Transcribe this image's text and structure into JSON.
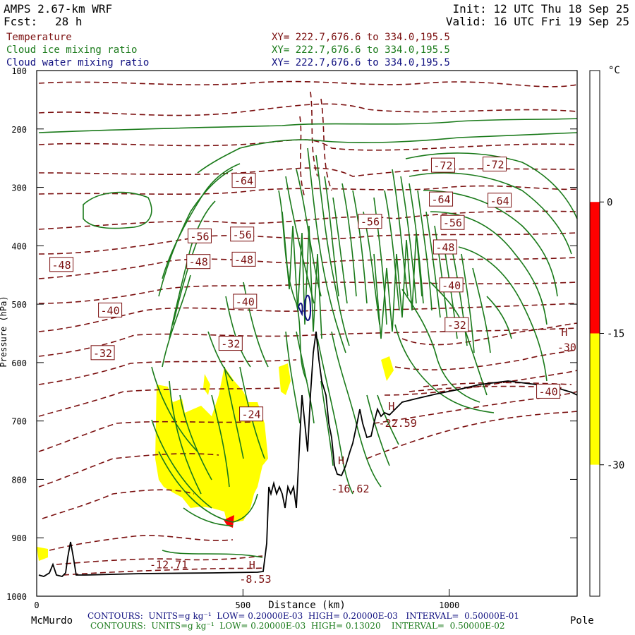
{
  "header": {
    "model": "AMPS 2.67-km WRF",
    "fcst_label": "Fcst:",
    "fcst_value": "28 h",
    "init": "Init: 12 UTC Thu 18 Sep 25",
    "valid": "Valid: 16 UTC Fri 19 Sep 25"
  },
  "variables": [
    {
      "name": "Temperature",
      "xy": "XY= 222.7,676.6 to 334.0,195.5",
      "color": "#7b1010"
    },
    {
      "name": "Cloud ice mixing ratio",
      "xy": "XY= 222.7,676.6 to 334.0,195.5",
      "color": "#1a7a1a"
    },
    {
      "name": "Cloud water mixing ratio",
      "xy": "XY= 222.7,676.6 to 334.0,195.5",
      "color": "#101080"
    }
  ],
  "colors": {
    "temperature": "#7b1010",
    "cloud_ice": "#1a7a1a",
    "cloud_water": "#101080",
    "fill_yellow": "#ffff00",
    "fill_red": "#ff0000"
  },
  "footer": {
    "water": "CONTOURS:  UNITS=g kg⁻¹  LOW= 0.20000E-03  HIGH= 0.20000E-03   INTERVAL=  0.50000E-01",
    "ice": "CONTOURS:  UNITS=g kg⁻¹  LOW= 0.20000E-03  HIGH= 0.13020    INTERVAL=  0.50000E-02"
  },
  "chart_data": {
    "type": "cross-section",
    "ylabel": "Pressure (hPa)",
    "xlabel": "Distance (km)",
    "xlim": [
      0,
      1310
    ],
    "ylim": [
      1000,
      100
    ],
    "y_ticks": [
      100,
      200,
      300,
      400,
      500,
      600,
      700,
      800,
      900,
      1000
    ],
    "x_ticks": [
      0,
      500,
      1000
    ],
    "x_endpoints": {
      "left": "McMurdo",
      "right": "Pole"
    },
    "temperature_labels": [
      {
        "text": "-64",
        "x": 502,
        "p": 288
      },
      {
        "text": "-72",
        "x": 985,
        "p": 262
      },
      {
        "text": "-72",
        "x": 1110,
        "p": 260
      },
      {
        "text": "-64",
        "x": 980,
        "p": 320
      },
      {
        "text": "-64",
        "x": 1122,
        "p": 322
      },
      {
        "text": "-56",
        "x": 395,
        "p": 383
      },
      {
        "text": "-56",
        "x": 498,
        "p": 380
      },
      {
        "text": "-56",
        "x": 808,
        "p": 358
      },
      {
        "text": "-56",
        "x": 1008,
        "p": 360
      },
      {
        "text": "-48",
        "x": 60,
        "p": 432
      },
      {
        "text": "-48",
        "x": 392,
        "p": 427
      },
      {
        "text": "-48",
        "x": 502,
        "p": 423
      },
      {
        "text": "-48",
        "x": 990,
        "p": 402
      },
      {
        "text": "-40",
        "x": 178,
        "p": 510
      },
      {
        "text": "-40",
        "x": 505,
        "p": 495
      },
      {
        "text": "-40",
        "x": 1005,
        "p": 467
      },
      {
        "text": "-32",
        "x": 160,
        "p": 583
      },
      {
        "text": "-32",
        "x": 470,
        "p": 567
      },
      {
        "text": "-32",
        "x": 1018,
        "p": 535
      },
      {
        "text": "-30",
        "x": 1285,
        "p": 573
      },
      {
        "text": "-24",
        "x": 520,
        "p": 688
      },
      {
        "text": "-40",
        "x": 1240,
        "p": 649
      },
      {
        "text": "-22.59",
        "x": 875,
        "p": 703
      },
      {
        "text": "-16.62",
        "x": 760,
        "p": 815
      },
      {
        "text": "-12.71",
        "x": 320,
        "p": 945
      },
      {
        "text": "-8.53",
        "x": 530,
        "p": 970
      }
    ],
    "extrema_markers": [
      {
        "text": "H",
        "x": 522,
        "p": 947
      },
      {
        "text": "H",
        "x": 738,
        "p": 768
      },
      {
        "text": "H",
        "x": 860,
        "p": 675
      },
      {
        "text": "H",
        "x": 1279,
        "p": 548
      }
    ],
    "colorbar": {
      "unit": "°C",
      "ticks": [
        0,
        -15,
        -30
      ],
      "segments": [
        {
          "color": "#ffffff",
          "from": 15,
          "to": 0
        },
        {
          "color": "#ff0000",
          "from": 0,
          "to": -15
        },
        {
          "color": "#ffff00",
          "from": -15,
          "to": -30
        },
        {
          "color": "#ffffff",
          "from": -30,
          "to": -45
        }
      ]
    }
  }
}
